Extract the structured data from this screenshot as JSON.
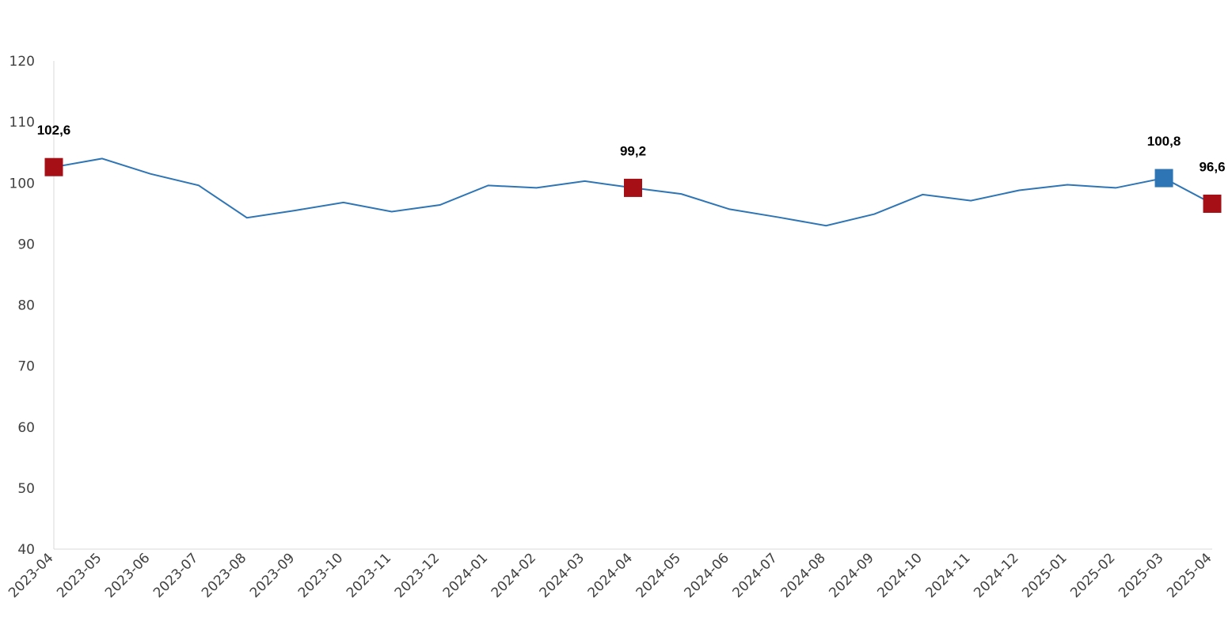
{
  "chart_data": {
    "type": "line",
    "title": "",
    "xlabel": "",
    "ylabel": "",
    "ylim": [
      40,
      120
    ],
    "y_ticks": [
      40,
      50,
      60,
      70,
      80,
      90,
      100,
      110,
      120
    ],
    "grid": false,
    "legend": "none",
    "categories": [
      "2023-04",
      "2023-05",
      "2023-06",
      "2023-07",
      "2023-08",
      "2023-09",
      "2023-10",
      "2023-11",
      "2023-12",
      "2024-01",
      "2024-02",
      "2024-03",
      "2024-04",
      "2024-05",
      "2024-06",
      "2024-07",
      "2024-08",
      "2024-09",
      "2024-10",
      "2024-11",
      "2024-12",
      "2025-01",
      "2025-02",
      "2025-03",
      "2025-04"
    ],
    "series": [
      {
        "values": [
          102.6,
          104.0,
          101.5,
          99.6,
          94.3,
          95.5,
          96.8,
          95.3,
          96.4,
          99.6,
          99.2,
          100.3,
          99.2,
          98.2,
          95.7,
          94.4,
          93.0,
          94.9,
          98.1,
          97.1,
          98.8,
          99.7,
          99.2,
          100.8,
          96.6
        ],
        "color": "#2e75b6"
      }
    ],
    "highlighted_points": [
      {
        "index": 0,
        "label": "102,6",
        "color": "#a50f15"
      },
      {
        "index": 12,
        "label": "99,2",
        "color": "#a50f15"
      },
      {
        "index": 23,
        "label": "100,8",
        "color": "#2e75b6"
      },
      {
        "index": 24,
        "label": "96,6",
        "color": "#a50f15"
      }
    ]
  }
}
